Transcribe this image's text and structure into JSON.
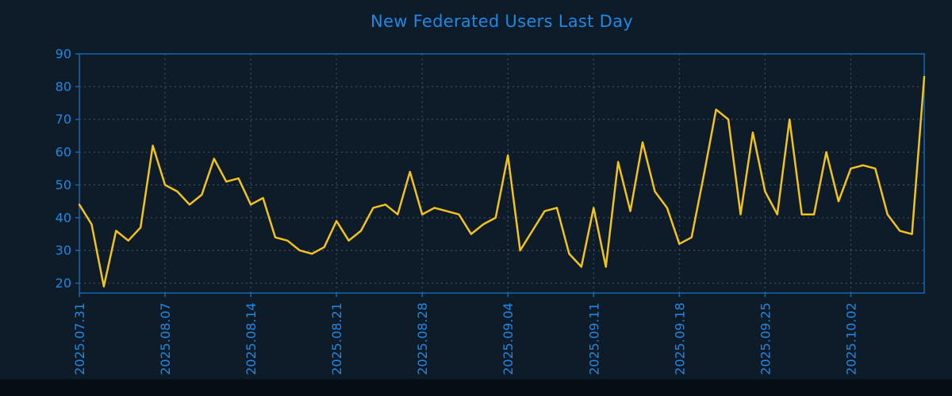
{
  "colors": {
    "background": "#0e1b29",
    "footer": "#070d15",
    "line": "#f2c21d",
    "axis": "#1566b0",
    "grid": "#44566b",
    "label": "#1e88e5"
  },
  "chart_data": {
    "type": "line",
    "title": "New Federated Users Last Day",
    "xlabel": "",
    "ylabel": "",
    "legend": "none",
    "grid": true,
    "x_ticks": [
      "2025.07.31",
      "2025.08.07",
      "2025.08.14",
      "2025.08.21",
      "2025.08.28",
      "2025.09.04",
      "2025.09.11",
      "2025.09.18",
      "2025.09.25",
      "2025.10.02"
    ],
    "x_tick_interval_days": 7,
    "y_ticks": [
      20,
      30,
      40,
      50,
      60,
      70,
      80,
      90
    ],
    "ylim": [
      17,
      90
    ],
    "values": [
      44,
      38,
      19,
      36,
      33,
      37,
      62,
      50,
      48,
      44,
      47,
      58,
      51,
      52,
      44,
      46,
      34,
      33,
      30,
      29,
      31,
      39,
      33,
      36,
      43,
      44,
      41,
      54,
      41,
      43,
      42,
      41,
      35,
      38,
      40,
      59,
      30,
      36,
      42,
      43,
      29,
      25,
      43,
      25,
      57,
      42,
      63,
      48,
      43,
      32,
      34,
      53,
      73,
      70,
      41,
      66,
      48,
      41,
      70,
      41,
      41,
      60,
      45,
      55,
      56,
      55,
      41,
      36,
      35,
      83
    ]
  }
}
